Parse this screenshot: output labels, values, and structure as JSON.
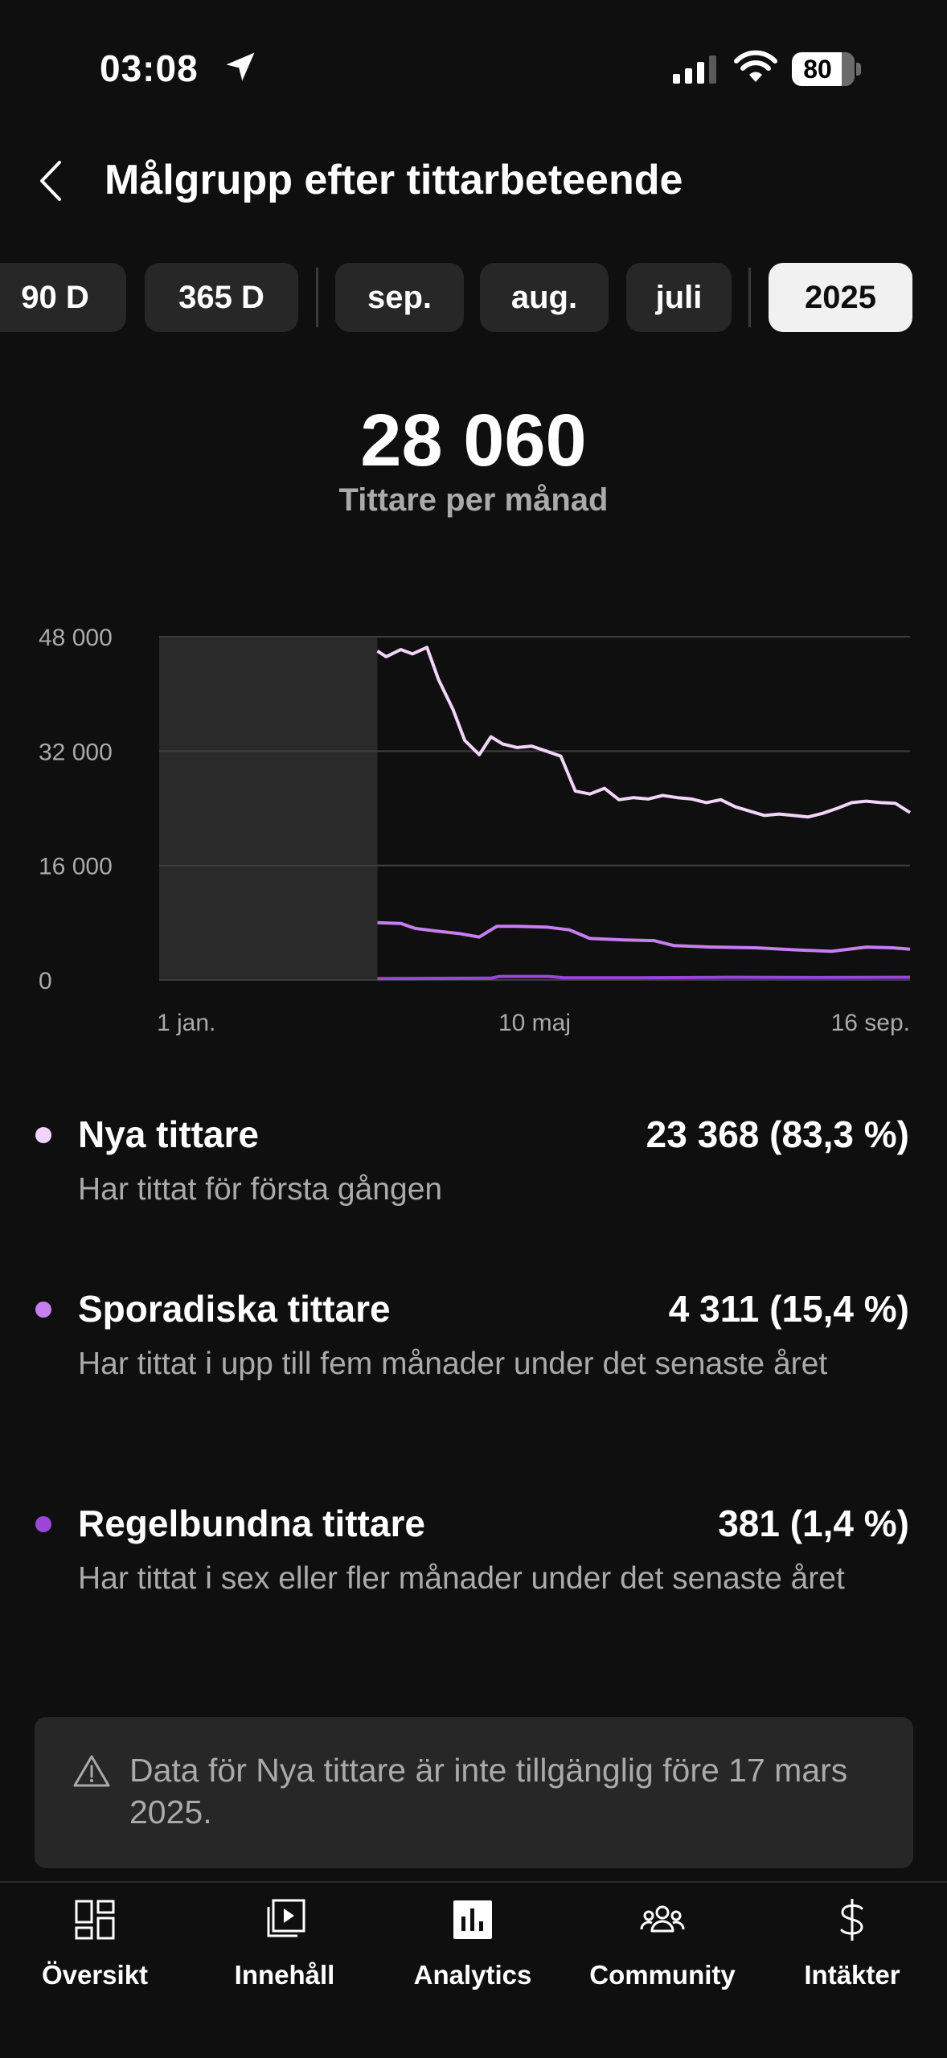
{
  "status_bar": {
    "time": "03:08",
    "battery": "80"
  },
  "header": {
    "title": "Målgrupp efter tittarbeteende"
  },
  "period_chips": [
    {
      "label": "90 D",
      "active": false
    },
    {
      "label": "365 D",
      "active": false
    },
    {
      "label": "sep.",
      "active": false
    },
    {
      "label": "aug.",
      "active": false
    },
    {
      "label": "juli",
      "active": false
    },
    {
      "label": "2025",
      "active": true
    }
  ],
  "metric": {
    "value": "28 060",
    "label": "Tittare per månad"
  },
  "colors": {
    "new_viewers": "#f3d5fb",
    "casual_viewers": "#c77ff0",
    "regular_viewers": "#9a46d8",
    "unavailable_region": "#2a2a2a"
  },
  "chart_data": {
    "type": "line",
    "y_ticks": [
      "48 000",
      "32 000",
      "16 000",
      "0"
    ],
    "x_ticks": [
      "1 jan.",
      "10 maj",
      "16 sep."
    ],
    "ylim": [
      0,
      48000
    ],
    "x_range": [
      "2025-01-01",
      "2025-09-16"
    ],
    "unavailable_until": "2025-03-17",
    "grid": true,
    "series": [
      {
        "name": "Nya tittare",
        "color": "#f3d5fb",
        "points": [
          [
            "2025-03-17",
            46000
          ],
          [
            "2025-03-20",
            45200
          ],
          [
            "2025-03-25",
            46200
          ],
          [
            "2025-03-29",
            45600
          ],
          [
            "2025-04-03",
            46500
          ],
          [
            "2025-04-07",
            42000
          ],
          [
            "2025-04-12",
            37800
          ],
          [
            "2025-04-16",
            33500
          ],
          [
            "2025-04-21",
            31500
          ],
          [
            "2025-04-25",
            34000
          ],
          [
            "2025-04-29",
            33000
          ],
          [
            "2025-05-04",
            32500
          ],
          [
            "2025-05-09",
            32700
          ],
          [
            "2025-05-14",
            32000
          ],
          [
            "2025-05-19",
            31300
          ],
          [
            "2025-05-24",
            26400
          ],
          [
            "2025-05-29",
            26000
          ],
          [
            "2025-06-03",
            26800
          ],
          [
            "2025-06-08",
            25200
          ],
          [
            "2025-06-13",
            25500
          ],
          [
            "2025-06-18",
            25300
          ],
          [
            "2025-06-23",
            25800
          ],
          [
            "2025-06-28",
            25500
          ],
          [
            "2025-07-03",
            25300
          ],
          [
            "2025-07-08",
            24800
          ],
          [
            "2025-07-13",
            25200
          ],
          [
            "2025-07-18",
            24200
          ],
          [
            "2025-07-23",
            23600
          ],
          [
            "2025-07-28",
            23000
          ],
          [
            "2025-08-02",
            23200
          ],
          [
            "2025-08-07",
            23000
          ],
          [
            "2025-08-12",
            22800
          ],
          [
            "2025-08-17",
            23300
          ],
          [
            "2025-08-22",
            24000
          ],
          [
            "2025-08-27",
            24800
          ],
          [
            "2025-09-01",
            25000
          ],
          [
            "2025-09-06",
            24800
          ],
          [
            "2025-09-11",
            24700
          ],
          [
            "2025-09-16",
            23400
          ]
        ]
      },
      {
        "name": "Sporadiska tittare",
        "color": "#c77ff0",
        "points": [
          [
            "2025-03-17",
            8000
          ],
          [
            "2025-03-25",
            7900
          ],
          [
            "2025-03-30",
            7200
          ],
          [
            "2025-04-07",
            6800
          ],
          [
            "2025-04-14",
            6500
          ],
          [
            "2025-04-21",
            6000
          ],
          [
            "2025-04-27",
            7500
          ],
          [
            "2025-05-04",
            7500
          ],
          [
            "2025-05-14",
            7400
          ],
          [
            "2025-05-22",
            7000
          ],
          [
            "2025-05-29",
            5800
          ],
          [
            "2025-06-10",
            5600
          ],
          [
            "2025-06-20",
            5500
          ],
          [
            "2025-06-27",
            4800
          ],
          [
            "2025-07-10",
            4600
          ],
          [
            "2025-07-25",
            4500
          ],
          [
            "2025-08-08",
            4200
          ],
          [
            "2025-08-20",
            4000
          ],
          [
            "2025-09-01",
            4600
          ],
          [
            "2025-09-10",
            4500
          ],
          [
            "2025-09-16",
            4300
          ]
        ]
      },
      {
        "name": "Regelbundna tittare",
        "color": "#9a46d8",
        "points": [
          [
            "2025-03-17",
            200
          ],
          [
            "2025-04-25",
            250
          ],
          [
            "2025-04-28",
            500
          ],
          [
            "2025-05-15",
            500
          ],
          [
            "2025-05-20",
            300
          ],
          [
            "2025-06-15",
            300
          ],
          [
            "2025-07-15",
            380
          ],
          [
            "2025-08-15",
            350
          ],
          [
            "2025-09-16",
            381
          ]
        ]
      }
    ]
  },
  "legend": [
    {
      "name": "Nya tittare",
      "value": "23 368 (83,3 %)",
      "description": "Har tittat för första gången",
      "color": "#f3d5fb"
    },
    {
      "name": "Sporadiska tittare",
      "value": "4 311 (15,4 %)",
      "description": "Har tittat i upp till fem månader under det senaste året",
      "color": "#c77ff0"
    },
    {
      "name": "Regelbundna tittare",
      "value": "381 (1,4 %)",
      "description": "Har tittat i sex eller fler månader under det senaste året",
      "color": "#9a46d8"
    }
  ],
  "notice": {
    "icon": "warning-icon",
    "text": "Data för Nya tittare är inte tillgänglig före 17 mars 2025."
  },
  "bottom_nav": [
    {
      "label": "Översikt",
      "icon": "overview-grid-icon"
    },
    {
      "label": "Innehåll",
      "icon": "content-library-icon"
    },
    {
      "label": "Analytics",
      "icon": "analytics-bars-icon"
    },
    {
      "label": "Community",
      "icon": "community-people-icon"
    },
    {
      "label": "Intäkter",
      "icon": "dollar-icon"
    }
  ]
}
